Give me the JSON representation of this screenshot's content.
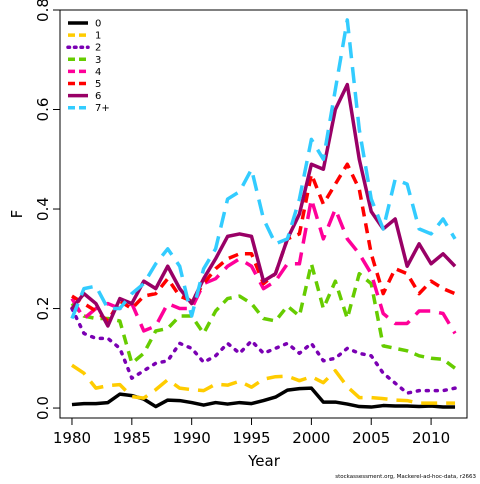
{
  "chart_data": {
    "type": "line",
    "title": "",
    "xlabel": "Year",
    "ylabel": "F",
    "xlim": [
      1979,
      2013
    ],
    "ylim": [
      -0.02,
      0.8
    ],
    "xticks": [
      1980,
      1985,
      1990,
      1995,
      2000,
      2005,
      2010
    ],
    "yticks": [
      0.0,
      0.2,
      0.4,
      0.6,
      0.8
    ],
    "ytick_labels": [
      "0.0",
      "0.2",
      "0.4",
      "0.6",
      "0.8"
    ],
    "legend_position": "top-left",
    "grid": false,
    "x": [
      1980,
      1981,
      1982,
      1983,
      1984,
      1985,
      1986,
      1987,
      1988,
      1989,
      1990,
      1991,
      1992,
      1993,
      1994,
      1995,
      1996,
      1997,
      1998,
      1999,
      2000,
      2001,
      2002,
      2003,
      2004,
      2005,
      2006,
      2007,
      2008,
      2009,
      2010,
      2011,
      2012
    ],
    "series": [
      {
        "name": "0",
        "color": "#000000",
        "dash": "solid",
        "values": [
          0.007,
          0.009,
          0.009,
          0.011,
          0.028,
          0.025,
          0.018,
          0.003,
          0.016,
          0.015,
          0.011,
          0.006,
          0.011,
          0.008,
          0.011,
          0.009,
          0.015,
          0.022,
          0.036,
          0.039,
          0.04,
          0.012,
          0.012,
          0.008,
          0.003,
          0.002,
          0.005,
          0.004,
          0.004,
          0.003,
          0.004,
          0.002,
          0.002
        ]
      },
      {
        "name": "1",
        "color": "#ffcc00",
        "dash": "longdash",
        "values": [
          0.086,
          0.07,
          0.04,
          0.045,
          0.047,
          0.023,
          0.02,
          0.037,
          0.057,
          0.04,
          0.037,
          0.035,
          0.048,
          0.046,
          0.054,
          0.042,
          0.058,
          0.063,
          0.064,
          0.055,
          0.063,
          0.051,
          0.075,
          0.043,
          0.021,
          0.021,
          0.019,
          0.016,
          0.015,
          0.01,
          0.01,
          0.01,
          0.01
        ]
      },
      {
        "name": "2",
        "color": "#7a00b3",
        "dash": "dotted",
        "values": [
          0.2,
          0.15,
          0.14,
          0.14,
          0.12,
          0.06,
          0.075,
          0.09,
          0.095,
          0.13,
          0.12,
          0.092,
          0.105,
          0.13,
          0.11,
          0.135,
          0.11,
          0.12,
          0.13,
          0.11,
          0.13,
          0.095,
          0.1,
          0.12,
          0.11,
          0.105,
          0.07,
          0.05,
          0.03,
          0.035,
          0.035,
          0.035,
          0.04
        ]
      },
      {
        "name": "3",
        "color": "#66cc00",
        "dash": "dashed",
        "values": [
          0.21,
          0.185,
          0.18,
          0.18,
          0.175,
          0.09,
          0.11,
          0.155,
          0.16,
          0.185,
          0.185,
          0.15,
          0.195,
          0.22,
          0.225,
          0.21,
          0.18,
          0.175,
          0.205,
          0.185,
          0.29,
          0.2,
          0.255,
          0.18,
          0.27,
          0.25,
          0.125,
          0.12,
          0.115,
          0.105,
          0.1,
          0.098,
          0.08
        ]
      },
      {
        "name": "4",
        "color": "#ff0099",
        "dash": "longdash",
        "values": [
          0.22,
          0.18,
          0.2,
          0.21,
          0.2,
          0.21,
          0.155,
          0.165,
          0.21,
          0.2,
          0.2,
          0.25,
          0.26,
          0.285,
          0.3,
          0.285,
          0.24,
          0.255,
          0.29,
          0.29,
          0.42,
          0.34,
          0.4,
          0.34,
          0.31,
          0.27,
          0.19,
          0.17,
          0.17,
          0.195,
          0.195,
          0.19,
          0.15
        ]
      },
      {
        "name": "5",
        "color": "#ff0000",
        "dash": "dashed",
        "values": [
          0.225,
          0.21,
          0.195,
          0.175,
          0.215,
          0.2,
          0.225,
          0.23,
          0.26,
          0.225,
          0.215,
          0.25,
          0.28,
          0.3,
          0.31,
          0.31,
          0.25,
          0.27,
          0.34,
          0.35,
          0.47,
          0.41,
          0.45,
          0.49,
          0.44,
          0.31,
          0.23,
          0.28,
          0.27,
          0.23,
          0.255,
          0.24,
          0.23
        ]
      },
      {
        "name": "6",
        "color": "#990066",
        "dash": "solid",
        "values": [
          0.2,
          0.23,
          0.21,
          0.165,
          0.22,
          0.21,
          0.255,
          0.24,
          0.285,
          0.24,
          0.21,
          0.26,
          0.3,
          0.345,
          0.35,
          0.345,
          0.255,
          0.27,
          0.34,
          0.39,
          0.49,
          0.48,
          0.6,
          0.65,
          0.5,
          0.395,
          0.36,
          0.38,
          0.285,
          0.33,
          0.29,
          0.31,
          0.285
        ]
      },
      {
        "name": "7+",
        "color": "#33ccff",
        "dash": "longdash",
        "values": [
          0.18,
          0.24,
          0.245,
          0.2,
          0.2,
          0.23,
          0.25,
          0.29,
          0.32,
          0.285,
          0.185,
          0.28,
          0.32,
          0.42,
          0.435,
          0.48,
          0.38,
          0.33,
          0.34,
          0.42,
          0.54,
          0.5,
          0.64,
          0.78,
          0.56,
          0.42,
          0.36,
          0.46,
          0.45,
          0.36,
          0.35,
          0.38,
          0.34
        ]
      }
    ],
    "annotation": "stockassessment.org, Mackerel-ad-hoc-data, r2663"
  }
}
